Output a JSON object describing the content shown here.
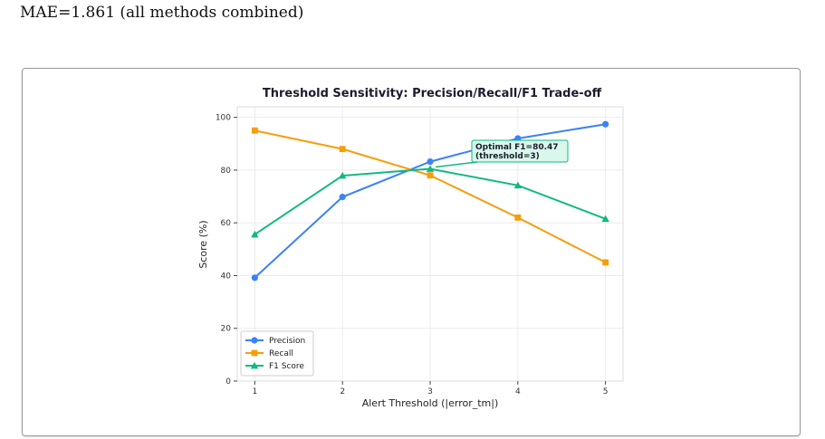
{
  "header": {
    "text": "MAE=1.861 (all methods combined)"
  },
  "chart_data": {
    "type": "line",
    "title": "Threshold Sensitivity: Precision/Recall/F1 Trade-off",
    "xlabel": "Alert Threshold (|error_tm|)",
    "ylabel": "Score (%)",
    "x": [
      1,
      2,
      3,
      4,
      5
    ],
    "xlim": [
      0.8,
      5.2
    ],
    "ylim": [
      0,
      104
    ],
    "yticks": [
      0,
      20,
      40,
      60,
      80,
      100
    ],
    "grid": true,
    "legend_position": "bottom-left",
    "series": [
      {
        "name": "Precision",
        "values": [
          39.2,
          69.8,
          83.2,
          92.0,
          97.4
        ],
        "color": "#3b82f6",
        "marker": "circle"
      },
      {
        "name": "Recall",
        "values": [
          95.0,
          88.0,
          78.0,
          62.0,
          45.0
        ],
        "color": "#f59e0b",
        "marker": "square"
      },
      {
        "name": "F1 Score",
        "values": [
          55.6,
          77.9,
          80.47,
          74.2,
          61.5
        ],
        "color": "#10b981",
        "marker": "triangle"
      }
    ],
    "annotation": {
      "lines": [
        "Optimal F1=80.47",
        "(threshold=3)"
      ],
      "x": 3,
      "y": 80.47,
      "box_fill": "#d9f7ea",
      "box_stroke": "#10b981"
    }
  }
}
